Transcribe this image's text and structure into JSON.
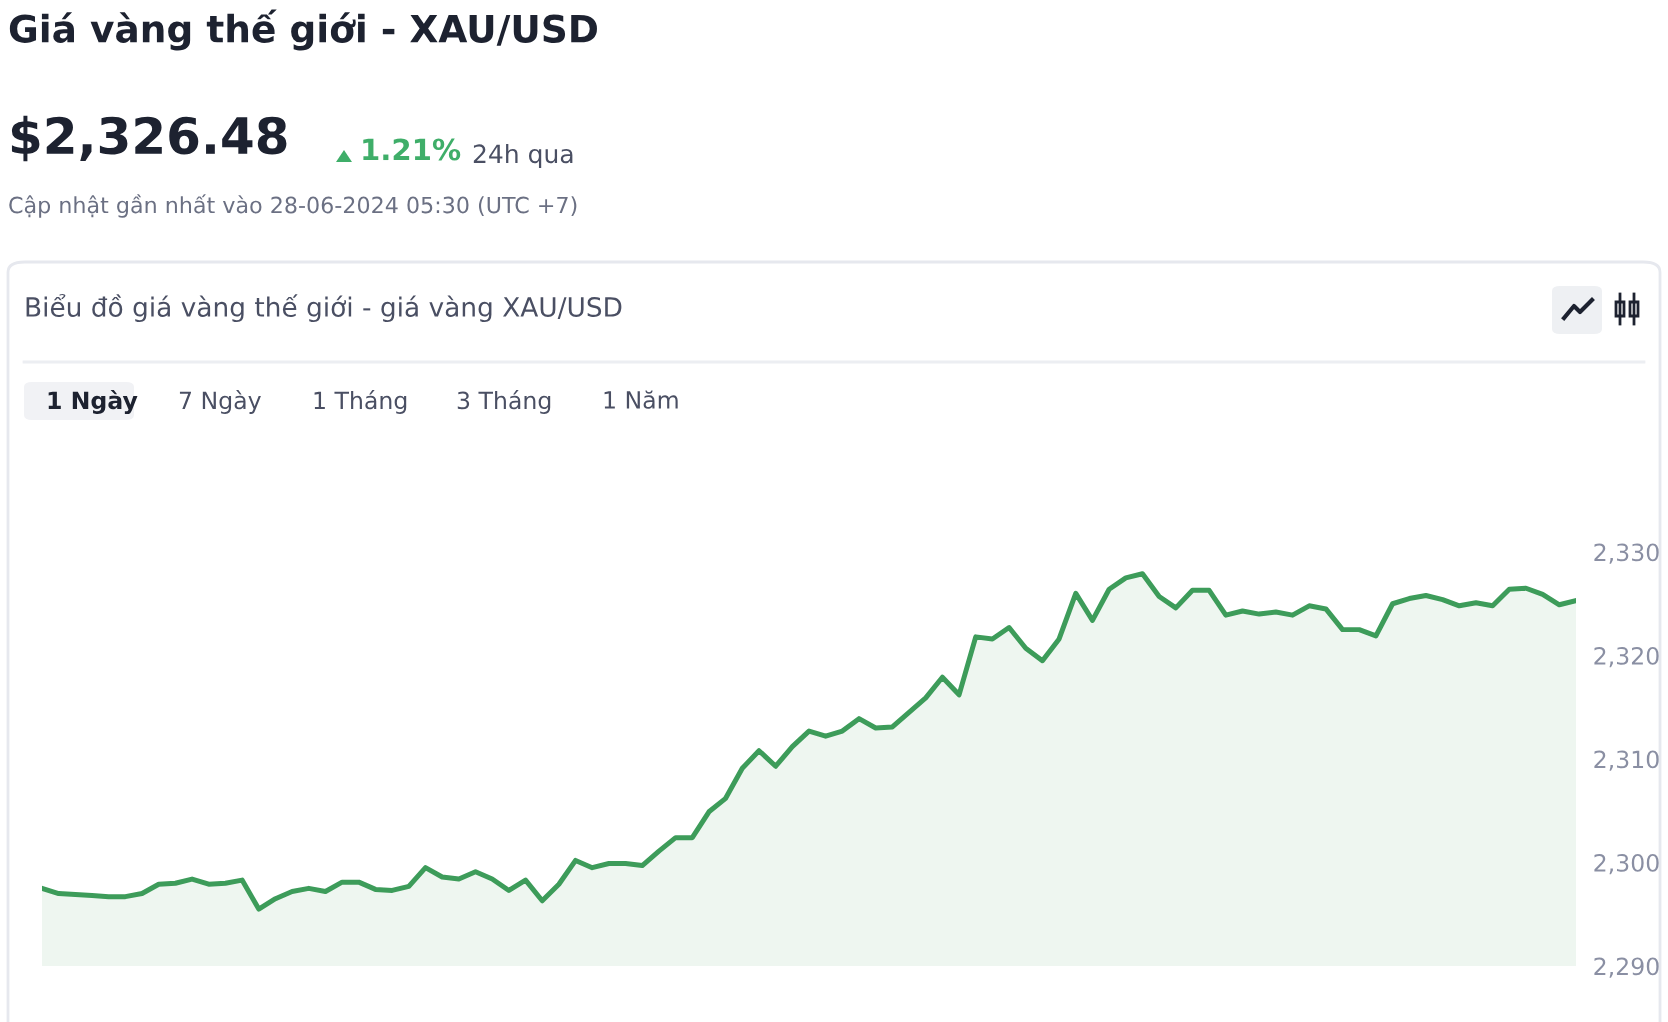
{
  "chart_data": {
    "type": "area",
    "title": "Giá vàng thế giới - XAU/USD",
    "subtitle": "Biểu đồ giá vàng thế giới - giá vàng XAU/USD",
    "annotations": [
      "$2,326.48",
      "1.21%",
      "24h qua",
      "Cập nhật gần nhất vào 28-06-2024 05:30 (UTC +7)",
      "1 Ngày",
      "7 Ngày",
      "1 Tháng",
      "3 Tháng",
      "1 Năm"
    ],
    "categories": [
      null,
      null,
      null,
      null,
      null,
      null,
      null,
      null,
      null,
      null,
      null,
      null,
      null,
      null,
      null,
      null,
      null,
      null,
      null,
      null,
      null,
      null,
      null,
      null,
      null,
      null,
      null,
      null,
      null,
      null,
      null,
      null,
      null,
      null,
      null,
      null,
      null,
      null,
      null,
      null,
      null,
      null,
      null,
      null,
      null,
      null,
      null,
      null,
      null,
      null,
      null,
      null,
      null,
      null,
      null,
      null,
      null,
      null,
      null,
      null,
      null,
      null,
      null,
      null,
      null,
      null,
      null,
      null,
      null,
      null,
      null,
      null,
      null,
      null,
      null,
      null,
      null,
      null,
      null,
      null,
      null,
      null,
      null,
      null,
      null,
      null,
      null,
      null,
      null,
      null,
      null,
      null,
      null
    ],
    "series": [
      {
        "color": "#3d9c5a",
        "values": [
          2297.5,
          2297.0,
          2296.9,
          2296.8,
          2296.7,
          2296.7,
          2297.0,
          2297.9,
          2298.0,
          2298.4,
          2297.9,
          2298.0,
          2298.3,
          2295.5,
          2296.5,
          2297.2,
          2297.5,
          2297.2,
          2298.1,
          2298.1,
          2297.4,
          2297.3,
          2297.7,
          2299.5,
          2298.6,
          2298.4,
          2299.1,
          2298.4,
          2297.3,
          2298.3,
          2296.3,
          2297.9,
          2300.2,
          2299.5,
          2299.9,
          2299.9,
          2299.7,
          2301.1,
          2302.4,
          2302.4,
          2304.9,
          2306.2,
          2309.1,
          2310.8,
          2309.3,
          2311.2,
          2312.7,
          2312.2,
          2312.7,
          2313.9,
          2313.0,
          2313.1,
          2314.5,
          2315.9,
          2317.9,
          2316.2,
          2321.8,
          2321.6,
          2322.7,
          2320.7,
          2319.5,
          2321.6,
          2326.0,
          2323.4,
          2326.4,
          2327.5,
          2327.9,
          2325.7,
          2324.6,
          2326.3,
          2326.3,
          2323.9,
          2324.3,
          2324.0,
          2324.2,
          2323.9,
          2324.8,
          2324.5,
          2322.5,
          2322.5,
          2321.9,
          2325.0,
          2325.5,
          2325.8,
          2325.4,
          2324.8,
          2325.1,
          2324.8,
          2326.4,
          2326.5,
          2325.9,
          2324.9,
          2325.3
        ]
      }
    ],
    "ylim": [
      2290,
      2330
    ],
    "yticks": [
      {
        "value": 2290,
        "label": "2,290"
      },
      {
        "value": 2300,
        "label": "2,300"
      },
      {
        "value": 2310,
        "label": "2,310"
      },
      {
        "value": 2320,
        "label": "2,320"
      },
      {
        "value": 2330,
        "label": "2,330"
      }
    ],
    "tick_labels": "y",
    "grid": false,
    "legend": false
  }
}
